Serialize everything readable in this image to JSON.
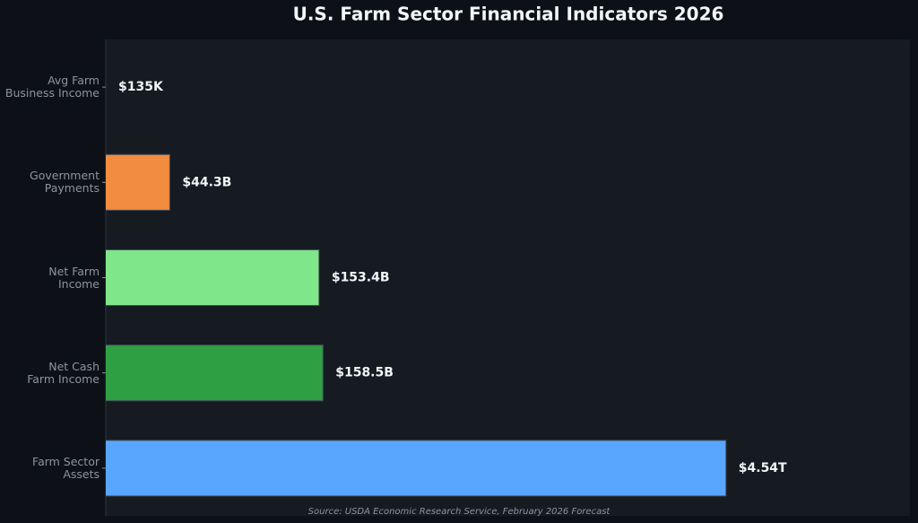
{
  "chart_data": {
    "type": "bar",
    "orientation": "horizontal",
    "title": "U.S. Farm Sector Financial Indicators 2026",
    "source": "Source: USDA Economic Research Service, February 2026 Forecast",
    "categories": [
      "Avg Farm\nBusiness Income",
      "Government\nPayments",
      "Net Farm\nIncome",
      "Net Cash\nFarm Income",
      "Farm Sector\nAssets"
    ],
    "values": [
      135000,
      44300000000,
      153400000000,
      158500000000,
      4540000000000
    ],
    "value_labels": [
      "$135K",
      "$44.3B",
      "$153.4B",
      "$158.5B",
      "$4.54T"
    ],
    "colors": [
      "#d2a8ff",
      "#f28c40",
      "#80e68a",
      "#2ea043",
      "#58a6ff"
    ],
    "xscale": "log",
    "xlim": [
      26000000000,
      21000000000000
    ]
  }
}
